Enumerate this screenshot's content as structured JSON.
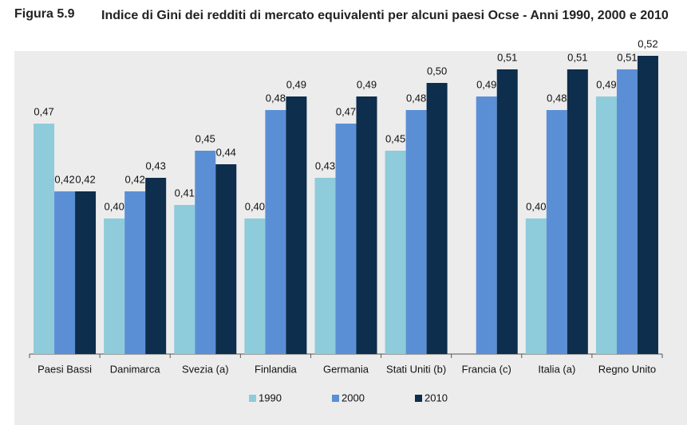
{
  "figure_label": "Figura 5.9",
  "chart_data": {
    "type": "bar",
    "title": "Indice di Gini dei redditi di mercato equivalenti per alcuni paesi Ocse - Anni 1990, 2000 e 2010",
    "categories": [
      "Paesi Bassi",
      "Danimarca",
      "Svezia (a)",
      "Finlandia",
      "Germania",
      "Stati Uniti (b)",
      "Francia (c)",
      "Italia (a)",
      "Regno Unito"
    ],
    "series": [
      {
        "name": "1990",
        "color": "#8ecbdb",
        "values": [
          0.47,
          0.4,
          0.41,
          0.4,
          0.43,
          0.45,
          null,
          0.4,
          0.49
        ],
        "value_labels": [
          "0,47",
          "0,40",
          "0,41",
          "0,40",
          "0,43",
          "0,45",
          null,
          "0,40",
          "0,49"
        ]
      },
      {
        "name": "2000",
        "color": "#5b8fd5",
        "values": [
          0.42,
          0.42,
          0.45,
          0.48,
          0.47,
          0.48,
          0.49,
          0.48,
          0.51
        ],
        "value_labels": [
          "0,42",
          "0,42",
          "0,45",
          "0,48",
          "0,47",
          "0,48",
          "0,49",
          "0,48",
          "0,51"
        ]
      },
      {
        "name": "2010",
        "color": "#0d2e4c",
        "values": [
          0.42,
          0.43,
          0.44,
          0.49,
          0.49,
          0.5,
          0.51,
          0.51,
          0.52
        ],
        "value_labels": [
          "0,42",
          "0,43",
          "0,44",
          "0,49",
          "0,49",
          "0,50",
          "0,51",
          "0,51",
          "0,52"
        ]
      }
    ],
    "ylim": [
      0.3,
      0.53
    ],
    "legend": "bottom"
  }
}
